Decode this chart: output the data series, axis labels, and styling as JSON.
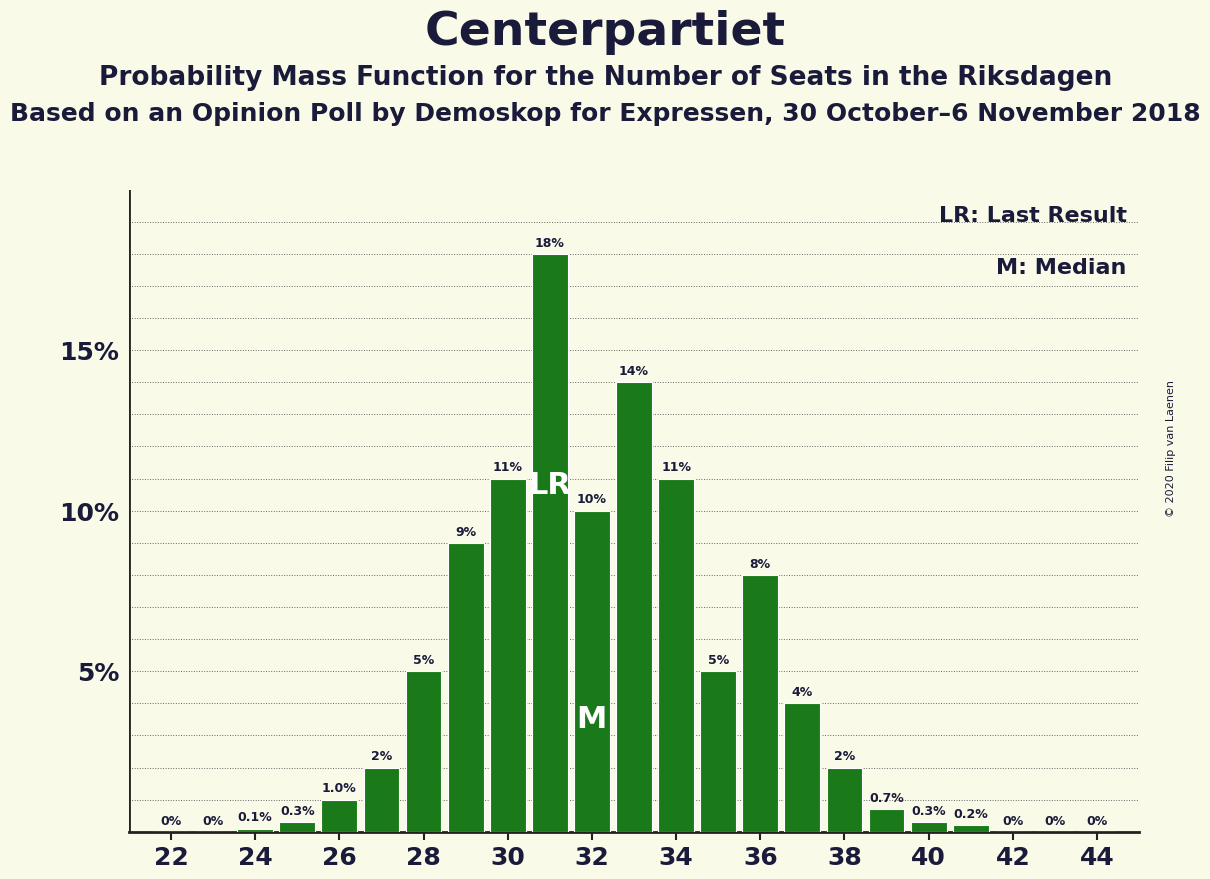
{
  "title": "Centerpartiet",
  "subtitle1": "Probability Mass Function for the Number of Seats in the Riksdagen",
  "subtitle2": "Based on an Opinion Poll by Demoskop for Expressen, 30 October–6 November 2018",
  "copyright": "© 2020 Filip van Laenen",
  "legend_lr": "LR: Last Result",
  "legend_m": "M: Median",
  "seats": [
    22,
    23,
    24,
    25,
    26,
    27,
    28,
    29,
    30,
    31,
    32,
    33,
    34,
    35,
    36,
    37,
    38,
    39,
    40,
    41,
    42,
    43,
    44
  ],
  "probabilities": [
    0.0,
    0.0,
    0.1,
    0.3,
    1.0,
    2.0,
    5.0,
    9.0,
    11.0,
    18.0,
    10.0,
    14.0,
    11.0,
    5.0,
    8.0,
    4.0,
    2.0,
    0.7,
    0.3,
    0.2,
    0.0,
    0.0,
    0.0
  ],
  "labels": [
    "0%",
    "0%",
    "0.1%",
    "0.3%",
    "1.0%",
    "2%",
    "5%",
    "9%",
    "11%",
    "18%",
    "10%",
    "14%",
    "11%",
    "5%",
    "8%",
    "4%",
    "2%",
    "0.7%",
    "0.3%",
    "0.2%",
    "0%",
    "0%",
    "0%"
  ],
  "bar_color": "#1a7a1a",
  "background_color": "#fafae8",
  "lr_seat": 31,
  "median_seat": 32,
  "ylim": [
    0,
    20
  ],
  "xlabel_seats": [
    22,
    24,
    26,
    28,
    30,
    32,
    34,
    36,
    38,
    40,
    42,
    44
  ],
  "title_fontsize": 34,
  "subtitle1_fontsize": 19,
  "subtitle2_fontsize": 18,
  "bar_width": 0.85,
  "text_color": "#1a1a3a",
  "grid_color": "#666666",
  "spine_color": "#222222"
}
